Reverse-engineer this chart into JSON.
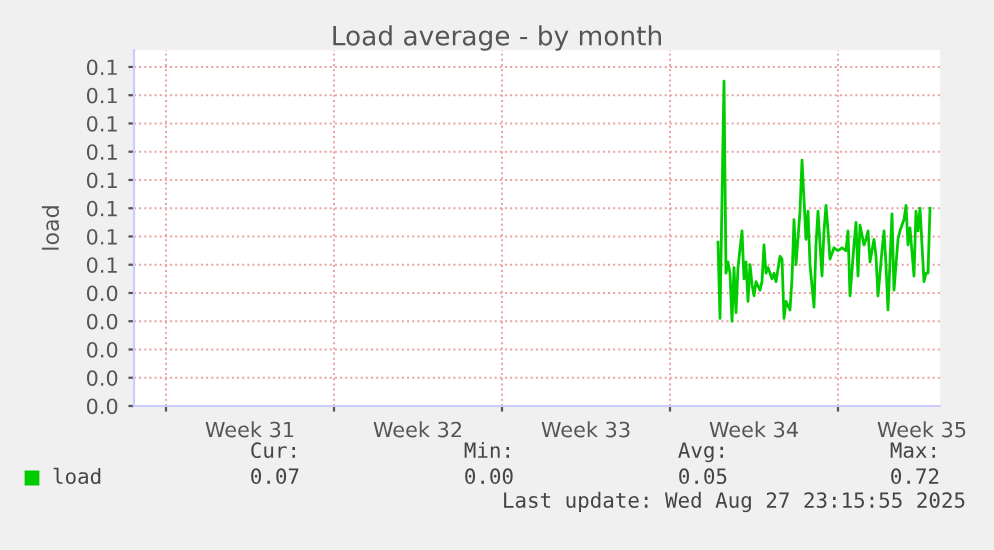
{
  "chart_data": {
    "type": "line",
    "title": "Load average - by month",
    "ylabel": "load",
    "xlim": [
      "2025-07-25T16:00",
      "2025-08-28T06:00"
    ],
    "xticks": [
      {
        "value": "2025-07-27",
        "label": null
      },
      {
        "value": "2025-07-30T12:00",
        "label": "Week 31"
      },
      {
        "value": "2025-08-03",
        "label": null
      },
      {
        "value": "2025-08-06T12:00",
        "label": "Week 32"
      },
      {
        "value": "2025-08-10",
        "label": null
      },
      {
        "value": "2025-08-13T12:00",
        "label": "Week 33"
      },
      {
        "value": "2025-08-17",
        "label": null
      },
      {
        "value": "2025-08-20T12:00",
        "label": "Week 34"
      },
      {
        "value": "2025-08-24",
        "label": null
      },
      {
        "value": "2025-08-27T12:00",
        "label": "Week 35"
      }
    ],
    "ylim": [
      0,
      0.126
    ],
    "yticks": [
      {
        "value": 0,
        "label": "0.0"
      },
      {
        "value": 0.01,
        "label": "0.0"
      },
      {
        "value": 0.02,
        "label": "0.0"
      },
      {
        "value": 0.03,
        "label": "0.0"
      },
      {
        "value": 0.04,
        "label": "0.0"
      },
      {
        "value": 0.05,
        "label": "0.1"
      },
      {
        "value": 0.06,
        "label": "0.1"
      },
      {
        "value": 0.07,
        "label": "0.1"
      },
      {
        "value": 0.08,
        "label": "0.1"
      },
      {
        "value": 0.09,
        "label": "0.1"
      },
      {
        "value": 0.1,
        "label": "0.1"
      },
      {
        "value": 0.11,
        "label": "0.1"
      },
      {
        "value": 0.12,
        "label": "0.1"
      }
    ],
    "grid": true,
    "legend": "bottom",
    "series": [
      {
        "name": "load",
        "color": "#00cc00",
        "x": [
          "2025-08-19T00:00",
          "2025-08-19T02:00",
          "2025-08-19T06:00",
          "2025-08-19T08:00",
          "2025-08-19T10:00",
          "2025-08-19T12:00",
          "2025-08-19T14:00",
          "2025-08-19T16:00",
          "2025-08-19T18:00",
          "2025-08-19T20:00",
          "2025-08-20T00:00",
          "2025-08-20T02:00",
          "2025-08-20T04:00",
          "2025-08-20T06:00",
          "2025-08-20T08:00",
          "2025-08-20T10:00",
          "2025-08-20T12:00",
          "2025-08-20T14:00",
          "2025-08-20T18:00",
          "2025-08-20T20:00",
          "2025-08-20T22:00",
          "2025-08-21T00:00",
          "2025-08-21T02:00",
          "2025-08-21T06:00",
          "2025-08-21T08:00",
          "2025-08-21T10:00",
          "2025-08-21T14:00",
          "2025-08-21T16:00",
          "2025-08-21T18:00",
          "2025-08-21T20:00",
          "2025-08-22T00:00",
          "2025-08-22T02:00",
          "2025-08-22T04:00",
          "2025-08-22T06:00",
          "2025-08-22T10:00",
          "2025-08-22T12:00",
          "2025-08-22T16:00",
          "2025-08-22T18:00",
          "2025-08-22T20:00",
          "2025-08-23T00:00",
          "2025-08-23T02:00",
          "2025-08-23T04:00",
          "2025-08-23T08:00",
          "2025-08-23T10:00",
          "2025-08-23T12:00",
          "2025-08-23T14:00",
          "2025-08-23T16:00",
          "2025-08-23T20:00",
          "2025-08-24T00:00",
          "2025-08-24T04:00",
          "2025-08-24T08:00",
          "2025-08-24T10:00",
          "2025-08-24T12:00",
          "2025-08-24T16:00",
          "2025-08-24T18:00",
          "2025-08-24T20:00",
          "2025-08-24T22:00",
          "2025-08-25T02:00",
          "2025-08-25T04:00",
          "2025-08-25T06:00",
          "2025-08-25T08:00",
          "2025-08-25T12:00",
          "2025-08-25T14:00",
          "2025-08-25T16:00",
          "2025-08-25T20:00",
          "2025-08-25T22:00",
          "2025-08-26T00:00",
          "2025-08-26T02:00",
          "2025-08-26T06:00",
          "2025-08-26T08:00",
          "2025-08-26T10:00",
          "2025-08-26T12:00",
          "2025-08-26T14:00",
          "2025-08-26T18:00",
          "2025-08-26T20:00",
          "2025-08-26T22:00",
          "2025-08-27T00:00",
          "2025-08-27T04:00",
          "2025-08-27T06:00",
          "2025-08-27T08:00",
          "2025-08-27T10:00",
          "2025-08-27T14:00",
          "2025-08-27T16:00",
          "2025-08-27T18:00",
          "2025-08-27T20:00"
        ],
        "values": [
          0.058,
          0.031,
          0.115,
          0.047,
          0.051,
          0.047,
          0.03,
          0.049,
          0.033,
          0.049,
          0.062,
          0.045,
          0.051,
          0.037,
          0.05,
          0.043,
          0.039,
          0.044,
          0.041,
          0.044,
          0.057,
          0.047,
          0.049,
          0.045,
          0.047,
          0.044,
          0.053,
          0.052,
          0.031,
          0.037,
          0.034,
          0.045,
          0.066,
          0.05,
          0.069,
          0.087,
          0.059,
          0.069,
          0.05,
          0.035,
          0.057,
          0.069,
          0.046,
          0.062,
          0.071,
          0.062,
          0.052,
          0.056,
          0.055,
          0.056,
          0.055,
          0.062,
          0.039,
          0.057,
          0.065,
          0.046,
          0.064,
          0.057,
          0.059,
          0.062,
          0.051,
          0.059,
          0.053,
          0.039,
          0.055,
          0.062,
          0.05,
          0.034,
          0.068,
          0.041,
          0.05,
          0.059,
          0.062,
          0.066,
          0.071,
          0.057,
          0.063,
          0.046,
          0.069,
          0.062,
          0.07,
          0.044,
          0.047,
          0.047,
          0.07
        ]
      }
    ],
    "annotations": [
      "Cur:",
      "0.07",
      "Min:",
      "0.00",
      "Avg:",
      "0.05",
      "Max:",
      "0.72",
      "Last update: Wed Aug 27 23:15:55 2025"
    ]
  }
}
